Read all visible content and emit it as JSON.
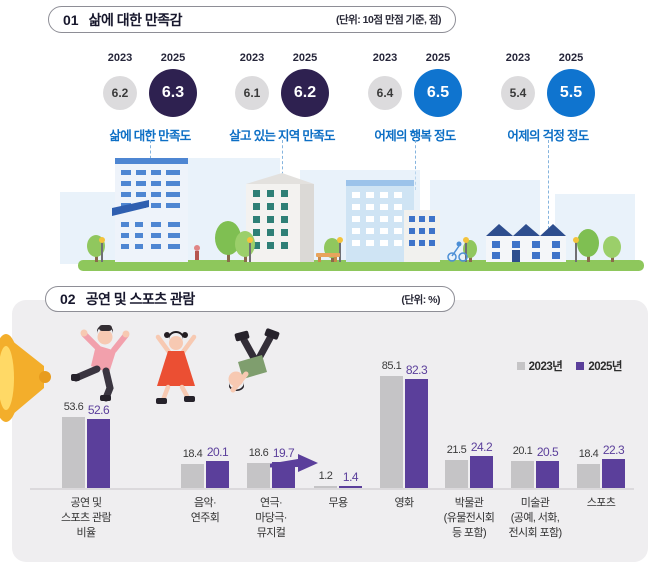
{
  "section1": {
    "number": "01",
    "title": "삶에 대한 만족감",
    "unit": "(단위: 10점 만점 기준, 점)",
    "year_labels": [
      "2023",
      "2025"
    ],
    "label_color": "#0d6fc5",
    "metrics": [
      {
        "label": "삶에 대한 만족도",
        "y2023": "6.2",
        "y2025": "6.3",
        "circle_color": "#2e2150"
      },
      {
        "label": "살고 있는 지역 만족도",
        "y2023": "6.1",
        "y2025": "6.2",
        "circle_color": "#2e2150"
      },
      {
        "label": "어제의 행복 정도",
        "y2023": "6.4",
        "y2025": "6.5",
        "circle_color": "#0f74cf"
      },
      {
        "label": "어제의 걱정 정도",
        "y2023": "5.4",
        "y2025": "5.5",
        "circle_color": "#0f74cf"
      }
    ]
  },
  "section2": {
    "number": "02",
    "title": "공연 및 스포츠 관람",
    "unit": "(단위: %)",
    "legend": [
      {
        "label": "2023년",
        "color": "#c5c4c6"
      },
      {
        "label": "2025년",
        "color": "#5b3f9b"
      }
    ]
  },
  "chart_data": {
    "type": "bar",
    "categories": [
      "공연 및\n스포츠 관람\n비율",
      "음악·\n연주회",
      "연극·\n마당극·\n뮤지컬",
      "무용",
      "영화",
      "박물관\n(유물전시회\n등 포함)",
      "미술관\n(공예, 서화,\n전시회 포함)",
      "스포츠"
    ],
    "series": [
      {
        "name": "2023년",
        "color": "#c5c4c6",
        "label_color": "#3b3b3b",
        "values": [
          53.6,
          18.4,
          18.6,
          1.2,
          85.1,
          21.5,
          20.1,
          18.4
        ]
      },
      {
        "name": "2025년",
        "color": "#5b3f9b",
        "label_color": "#5b3f9b",
        "values": [
          52.6,
          20.1,
          19.7,
          1.4,
          82.3,
          24.2,
          20.5,
          22.3
        ]
      }
    ],
    "title": "공연 및 스포츠 관람",
    "xlabel": "",
    "ylabel": "",
    "unit": "%",
    "ylim": [
      0,
      100
    ],
    "grid": false,
    "legend_position": "top-right"
  }
}
